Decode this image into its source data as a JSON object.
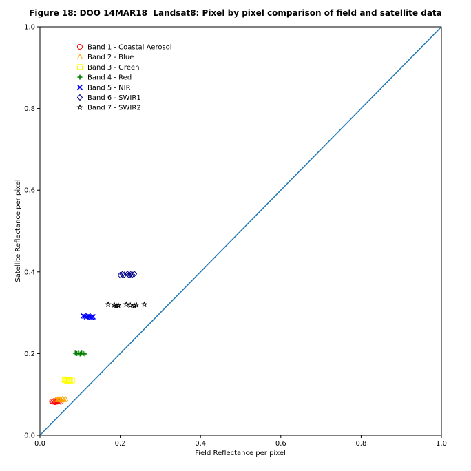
{
  "chart_data": {
    "type": "scatter",
    "title": "Figure 18: DOO 14MAR18  Landsat8: Pixel by pixel comparison of field and satellite data",
    "xlabel": "Field Reflectance per pixel",
    "ylabel": "Satellite Reflectance per pixel",
    "xlim": [
      0,
      1
    ],
    "ylim": [
      0,
      1
    ],
    "xticks": [
      "0.0",
      "0.2",
      "0.4",
      "0.6",
      "0.8",
      "1.0"
    ],
    "yticks": [
      "0.0",
      "0.2",
      "0.4",
      "0.6",
      "0.8",
      "1.0"
    ],
    "grid": false,
    "legend_position": "upper-left",
    "reference_line": {
      "x": [
        0,
        1
      ],
      "y": [
        0,
        1
      ],
      "color": "#1f77b4"
    },
    "series": [
      {
        "name": "Band 1 - Coastal Aerosol",
        "marker": "circle",
        "color": "#ff0000",
        "x": [
          0.03,
          0.033,
          0.036,
          0.038,
          0.04,
          0.043,
          0.045,
          0.048,
          0.052
        ],
        "y": [
          0.083,
          0.082,
          0.084,
          0.081,
          0.083,
          0.082,
          0.084,
          0.083,
          0.082
        ]
      },
      {
        "name": "Band 2 - Blue",
        "marker": "triangle",
        "color": "#ffa500",
        "x": [
          0.04,
          0.044,
          0.047,
          0.05,
          0.053,
          0.056,
          0.06,
          0.064
        ],
        "y": [
          0.088,
          0.087,
          0.089,
          0.088,
          0.086,
          0.089,
          0.087,
          0.088
        ]
      },
      {
        "name": "Band 3 - Green",
        "marker": "square",
        "color": "#ffff00",
        "x": [
          0.058,
          0.062,
          0.066,
          0.069,
          0.072,
          0.075,
          0.08
        ],
        "y": [
          0.137,
          0.136,
          0.134,
          0.133,
          0.135,
          0.132,
          0.134
        ]
      },
      {
        "name": "Band 4 - Red",
        "marker": "plus",
        "color": "#008000",
        "x": [
          0.088,
          0.092,
          0.096,
          0.1,
          0.104,
          0.108,
          0.112
        ],
        "y": [
          0.201,
          0.2,
          0.201,
          0.199,
          0.201,
          0.2,
          0.199
        ]
      },
      {
        "name": "Band 5 - NIR",
        "marker": "x",
        "color": "#0000ff",
        "x": [
          0.108,
          0.112,
          0.116,
          0.12,
          0.124,
          0.128,
          0.132
        ],
        "y": [
          0.292,
          0.291,
          0.29,
          0.292,
          0.29,
          0.289,
          0.29
        ]
      },
      {
        "name": "Band 6 - SWIR1",
        "marker": "diamond",
        "color": "#00008b",
        "x": [
          0.2,
          0.205,
          0.21,
          0.218,
          0.222,
          0.226,
          0.23,
          0.235
        ],
        "y": [
          0.392,
          0.394,
          0.393,
          0.395,
          0.392,
          0.394,
          0.393,
          0.395
        ]
      },
      {
        "name": "Band 7 - SWIR2",
        "marker": "star",
        "color": "#000000",
        "x": [
          0.17,
          0.185,
          0.19,
          0.195,
          0.215,
          0.225,
          0.235,
          0.24,
          0.26
        ],
        "y": [
          0.32,
          0.319,
          0.317,
          0.318,
          0.32,
          0.318,
          0.317,
          0.319,
          0.32
        ]
      }
    ]
  }
}
